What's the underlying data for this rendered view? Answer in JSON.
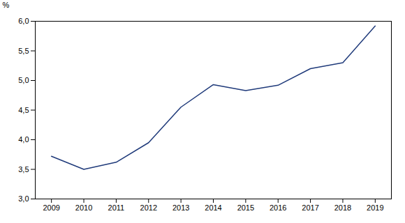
{
  "chart_data": {
    "type": "line",
    "x": [
      2009,
      2010,
      2011,
      2012,
      2013,
      2014,
      2015,
      2016,
      2017,
      2018,
      2019
    ],
    "values": [
      3.72,
      3.5,
      3.62,
      3.95,
      4.55,
      4.93,
      4.83,
      4.92,
      5.2,
      5.3,
      5.92
    ],
    "color": "#1F3A7A",
    "ylabel": "%",
    "xlim": [
      2008.5,
      2019.5
    ],
    "xticks": [
      2009,
      2010,
      2011,
      2012,
      2013,
      2014,
      2015,
      2016,
      2017,
      2018,
      2019
    ],
    "ylim": [
      3.0,
      6.0
    ],
    "yticks": [
      {
        "value": 3.0,
        "label": "3,0"
      },
      {
        "value": 3.5,
        "label": "3,5"
      },
      {
        "value": 4.0,
        "label": "4,0"
      },
      {
        "value": 4.5,
        "label": "4,5"
      },
      {
        "value": 5.0,
        "label": "5,0"
      },
      {
        "value": 5.5,
        "label": "5,5"
      },
      {
        "value": 6.0,
        "label": "6,0"
      }
    ],
    "grid": false
  }
}
